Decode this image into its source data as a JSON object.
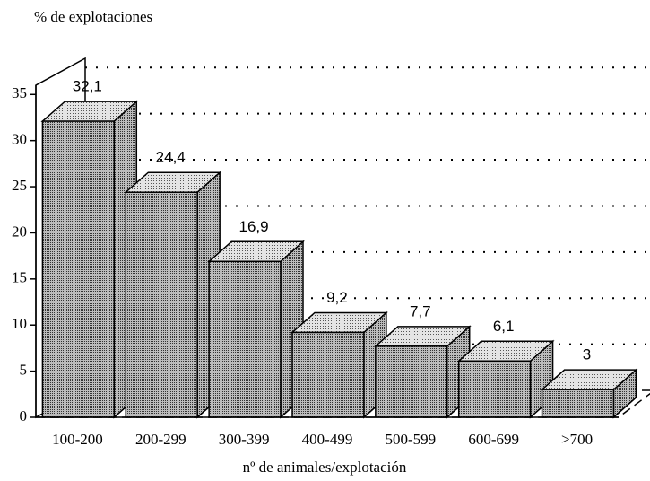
{
  "chart_data": {
    "type": "bar3d",
    "title": "% de explotaciones",
    "x_label": "nº de animales/explotación",
    "categories": [
      "100-200",
      "200-299",
      "300-399",
      "400-499",
      "500-599",
      "600-699",
      ">700"
    ],
    "values": [
      32.1,
      24.4,
      16.9,
      9.2,
      7.7,
      6.1,
      3
    ],
    "value_labels": [
      "32,1",
      "24,4",
      "16,9",
      "9,2",
      "7,7",
      "6,1",
      "3"
    ],
    "ylim": [
      0,
      36
    ],
    "yticks": [
      0,
      5,
      10,
      15,
      20,
      25,
      30,
      35
    ],
    "grid": true
  }
}
